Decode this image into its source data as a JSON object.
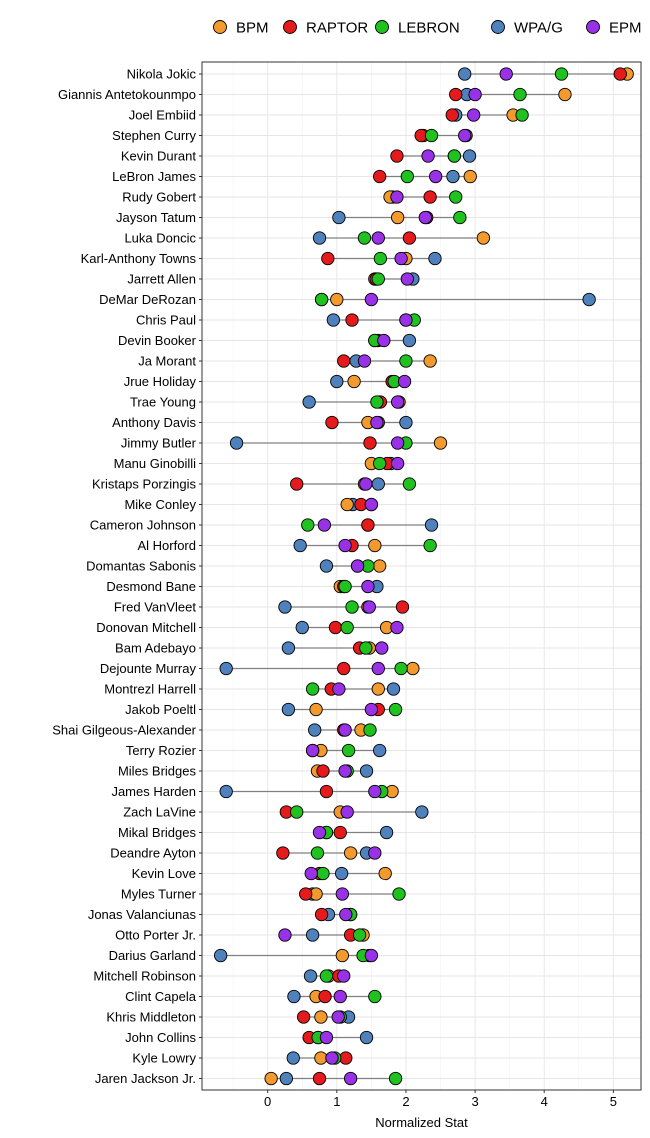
{
  "chart_data": {
    "type": "scatter",
    "subtype": "dot-range",
    "xlabel": "Normalized Stat",
    "ylabel": "",
    "xlim": [
      -0.95,
      5.4
    ],
    "xticks": [
      0,
      1,
      2,
      3,
      4,
      5
    ],
    "grid": true,
    "legend_position": "top",
    "series": [
      {
        "name": "BPM",
        "color": "#f29a2e"
      },
      {
        "name": "RAPTOR",
        "color": "#e41a1c"
      },
      {
        "name": "LEBRON",
        "color": "#1fc21f"
      },
      {
        "name": "WPA/G",
        "color": "#4f81bd"
      },
      {
        "name": "EPM",
        "color": "#9932e6"
      }
    ],
    "players": [
      {
        "name": "Nikola Jokic",
        "BPM": 5.2,
        "RAPTOR": 5.1,
        "LEBRON": 4.25,
        "WPA/G": 2.85,
        "EPM": 3.45
      },
      {
        "name": "Giannis Antetokounmpo",
        "BPM": 4.3,
        "RAPTOR": 2.72,
        "LEBRON": 3.65,
        "WPA/G": 2.88,
        "EPM": 3.0
      },
      {
        "name": "Joel Embiid",
        "BPM": 3.55,
        "RAPTOR": 2.67,
        "LEBRON": 3.68,
        "WPA/G": 2.72,
        "EPM": 2.98
      },
      {
        "name": "Stephen Curry",
        "BPM": 2.25,
        "RAPTOR": 2.22,
        "LEBRON": 2.37,
        "WPA/G": 2.87,
        "EPM": 2.85
      },
      {
        "name": "Kevin Durant",
        "BPM": 2.7,
        "RAPTOR": 1.87,
        "LEBRON": 2.7,
        "WPA/G": 2.92,
        "EPM": 2.32
      },
      {
        "name": "LeBron James",
        "BPM": 2.93,
        "RAPTOR": 1.62,
        "LEBRON": 2.02,
        "WPA/G": 2.68,
        "EPM": 2.43
      },
      {
        "name": "Rudy Gobert",
        "BPM": 1.77,
        "RAPTOR": 2.35,
        "LEBRON": 2.72,
        "WPA/G": 1.8,
        "EPM": 1.87
      },
      {
        "name": "Jayson Tatum",
        "BPM": 1.88,
        "RAPTOR": 2.3,
        "LEBRON": 2.78,
        "WPA/G": 1.03,
        "EPM": 2.28
      },
      {
        "name": "Luka Doncic",
        "BPM": 3.12,
        "RAPTOR": 2.05,
        "LEBRON": 1.4,
        "WPA/G": 0.75,
        "EPM": 1.6
      },
      {
        "name": "Karl-Anthony Towns",
        "BPM": 2.0,
        "RAPTOR": 0.87,
        "LEBRON": 1.63,
        "WPA/G": 2.42,
        "EPM": 1.93
      },
      {
        "name": "Jarrett Allen",
        "BPM": 1.55,
        "RAPTOR": 1.57,
        "LEBRON": 1.6,
        "WPA/G": 2.1,
        "EPM": 2.02
      },
      {
        "name": "DeMar DeRozan",
        "BPM": 1.0,
        "RAPTOR": 0.78,
        "LEBRON": 0.78,
        "WPA/G": 4.65,
        "EPM": 1.5
      },
      {
        "name": "Chris Paul",
        "BPM": 2.0,
        "RAPTOR": 1.22,
        "LEBRON": 2.12,
        "WPA/G": 0.95,
        "EPM": 2.0
      },
      {
        "name": "Devin Booker",
        "BPM": 1.55,
        "RAPTOR": 1.6,
        "LEBRON": 1.55,
        "WPA/G": 2.05,
        "EPM": 1.68
      },
      {
        "name": "Ja Morant",
        "BPM": 2.35,
        "RAPTOR": 1.1,
        "LEBRON": 2.0,
        "WPA/G": 1.28,
        "EPM": 1.4
      },
      {
        "name": "Jrue Holiday",
        "BPM": 1.25,
        "RAPTOR": 1.8,
        "LEBRON": 1.83,
        "WPA/G": 1.0,
        "EPM": 1.98
      },
      {
        "name": "Trae Young",
        "BPM": 1.9,
        "RAPTOR": 1.63,
        "LEBRON": 1.58,
        "WPA/G": 0.6,
        "EPM": 1.88
      },
      {
        "name": "Anthony Davis",
        "BPM": 1.45,
        "RAPTOR": 0.93,
        "LEBRON": 1.6,
        "WPA/G": 2.0,
        "EPM": 1.58
      },
      {
        "name": "Jimmy Butler",
        "BPM": 2.5,
        "RAPTOR": 1.48,
        "LEBRON": 2.0,
        "WPA/G": -0.45,
        "EPM": 1.88
      },
      {
        "name": "Manu Ginobilli",
        "BPM": 1.5,
        "RAPTOR": 1.73,
        "LEBRON": 1.62,
        "WPA/G": 1.78,
        "EPM": 1.88
      },
      {
        "name": "Kristaps Porzingis",
        "BPM": 1.4,
        "RAPTOR": 0.42,
        "LEBRON": 2.05,
        "WPA/G": 1.6,
        "EPM": 1.42
      },
      {
        "name": "Mike Conley",
        "BPM": 1.15,
        "RAPTOR": 1.35,
        "LEBRON": 1.5,
        "WPA/G": 1.23,
        "EPM": 1.5
      },
      {
        "name": "Cameron Johnson",
        "BPM": 1.45,
        "RAPTOR": 1.45,
        "LEBRON": 0.58,
        "WPA/G": 2.37,
        "EPM": 0.82
      },
      {
        "name": "Al Horford",
        "BPM": 1.55,
        "RAPTOR": 1.22,
        "LEBRON": 2.35,
        "WPA/G": 0.47,
        "EPM": 1.12
      },
      {
        "name": "Domantas Sabonis",
        "BPM": 1.62,
        "RAPTOR": 1.3,
        "LEBRON": 1.45,
        "WPA/G": 0.85,
        "EPM": 1.3
      },
      {
        "name": "Desmond Bane",
        "BPM": 1.05,
        "RAPTOR": 1.1,
        "LEBRON": 1.12,
        "WPA/G": 1.58,
        "EPM": 1.45
      },
      {
        "name": "Fred VanVleet",
        "BPM": 1.45,
        "RAPTOR": 1.95,
        "LEBRON": 1.22,
        "WPA/G": 0.25,
        "EPM": 1.47
      },
      {
        "name": "Donovan Mitchell",
        "BPM": 1.72,
        "RAPTOR": 0.98,
        "LEBRON": 1.15,
        "WPA/G": 0.5,
        "EPM": 1.87
      },
      {
        "name": "Bam Adebayo",
        "BPM": 1.47,
        "RAPTOR": 1.33,
        "LEBRON": 1.42,
        "WPA/G": 0.3,
        "EPM": 1.65
      },
      {
        "name": "Dejounte Murray",
        "BPM": 2.1,
        "RAPTOR": 1.1,
        "LEBRON": 1.93,
        "WPA/G": -0.6,
        "EPM": 1.6
      },
      {
        "name": "Montrezl Harrell",
        "BPM": 1.6,
        "RAPTOR": 0.92,
        "LEBRON": 0.65,
        "WPA/G": 1.82,
        "EPM": 1.03
      },
      {
        "name": "Jakob Poeltl",
        "BPM": 0.7,
        "RAPTOR": 1.6,
        "LEBRON": 1.85,
        "WPA/G": 0.3,
        "EPM": 1.5
      },
      {
        "name": "Shai Gilgeous-Alexander",
        "BPM": 1.35,
        "RAPTOR": 1.1,
        "LEBRON": 1.48,
        "WPA/G": 0.68,
        "EPM": 1.12
      },
      {
        "name": "Terry Rozier",
        "BPM": 0.77,
        "RAPTOR": 0.65,
        "LEBRON": 1.17,
        "WPA/G": 1.62,
        "EPM": 0.65
      },
      {
        "name": "Miles Bridges",
        "BPM": 0.72,
        "RAPTOR": 0.8,
        "LEBRON": 1.15,
        "WPA/G": 1.43,
        "EPM": 1.12
      },
      {
        "name": "James Harden",
        "BPM": 1.8,
        "RAPTOR": 0.85,
        "LEBRON": 1.65,
        "WPA/G": -0.6,
        "EPM": 1.55
      },
      {
        "name": "Zach LaVine",
        "BPM": 1.05,
        "RAPTOR": 0.27,
        "LEBRON": 0.42,
        "WPA/G": 2.23,
        "EPM": 1.15
      },
      {
        "name": "Mikal Bridges",
        "BPM": 0.85,
        "RAPTOR": 1.05,
        "LEBRON": 0.85,
        "WPA/G": 1.72,
        "EPM": 0.75
      },
      {
        "name": "Deandre Ayton",
        "BPM": 1.2,
        "RAPTOR": 0.22,
        "LEBRON": 0.72,
        "WPA/G": 1.43,
        "EPM": 1.55
      },
      {
        "name": "Kevin Love",
        "BPM": 1.7,
        "RAPTOR": 0.75,
        "LEBRON": 0.8,
        "WPA/G": 1.07,
        "EPM": 0.63
      },
      {
        "name": "Myles Turner",
        "BPM": 0.7,
        "RAPTOR": 0.55,
        "LEBRON": 1.9,
        "WPA/G": 0.65,
        "EPM": 1.08
      },
      {
        "name": "Jonas Valanciunas",
        "BPM": 1.2,
        "RAPTOR": 0.78,
        "LEBRON": 1.2,
        "WPA/G": 0.88,
        "EPM": 1.13
      },
      {
        "name": "Otto Porter Jr.",
        "BPM": 1.38,
        "RAPTOR": 1.2,
        "LEBRON": 1.33,
        "WPA/G": 0.65,
        "EPM": 0.25
      },
      {
        "name": "Darius Garland",
        "BPM": 1.08,
        "RAPTOR": 1.47,
        "LEBRON": 1.38,
        "WPA/G": -0.68,
        "EPM": 1.5
      },
      {
        "name": "Mitchell Robinson",
        "BPM": 0.88,
        "RAPTOR": 1.03,
        "LEBRON": 0.85,
        "WPA/G": 0.62,
        "EPM": 1.1
      },
      {
        "name": "Clint Capela",
        "BPM": 0.7,
        "RAPTOR": 0.83,
        "LEBRON": 1.55,
        "WPA/G": 0.38,
        "EPM": 1.05
      },
      {
        "name": "Khris Middleton",
        "BPM": 0.77,
        "RAPTOR": 0.52,
        "LEBRON": 1.05,
        "WPA/G": 1.17,
        "EPM": 1.02
      },
      {
        "name": "John Collins",
        "BPM": 0.73,
        "RAPTOR": 0.6,
        "LEBRON": 0.73,
        "WPA/G": 1.43,
        "EPM": 0.85
      },
      {
        "name": "Kyle Lowry",
        "BPM": 0.77,
        "RAPTOR": 1.13,
        "LEBRON": 0.97,
        "WPA/G": 0.37,
        "EPM": 0.93
      },
      {
        "name": "Jaren Jackson Jr.",
        "BPM": 0.05,
        "RAPTOR": 0.75,
        "LEBRON": 1.85,
        "WPA/G": 0.27,
        "EPM": 1.2
      }
    ]
  }
}
